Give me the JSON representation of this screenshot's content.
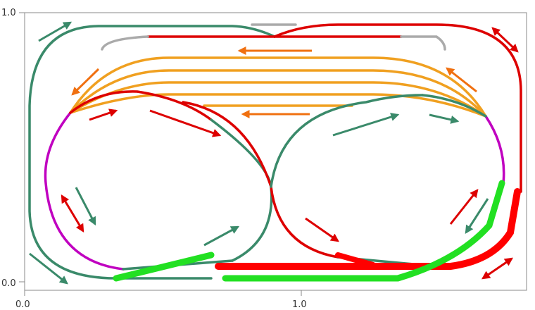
{
  "x_axis": {
    "labels": [
      "0.0",
      "1.0"
    ]
  },
  "y_axis": {
    "labels": [
      "1.0",
      "0.0"
    ]
  }
}
